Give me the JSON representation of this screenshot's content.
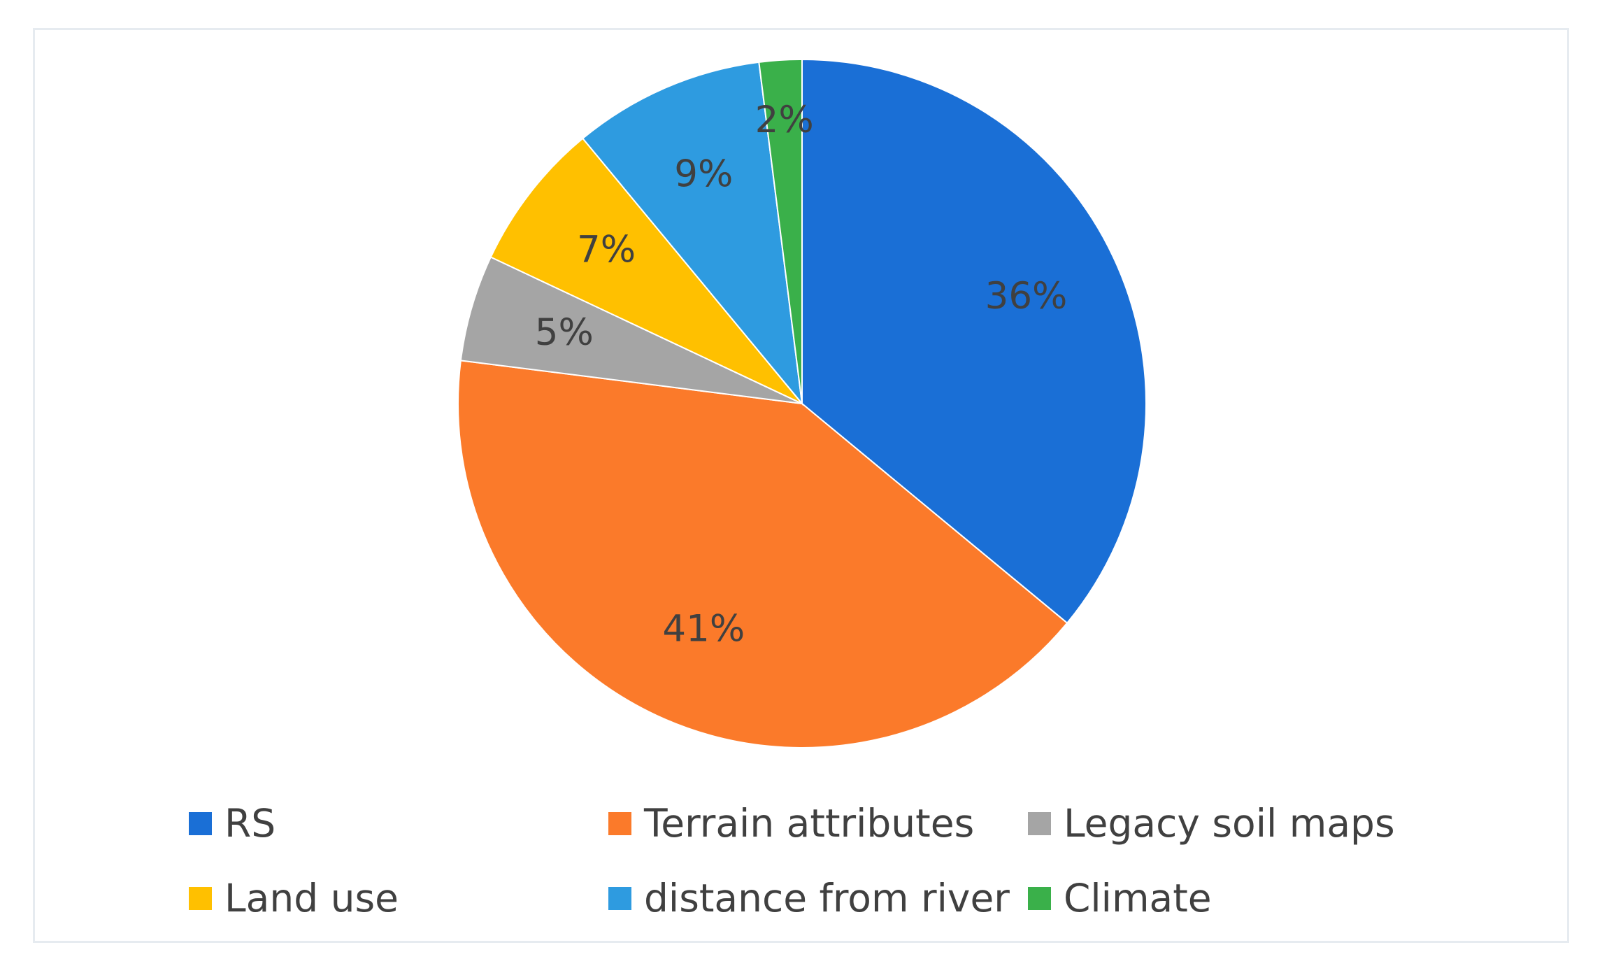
{
  "chart_data": {
    "type": "pie",
    "title": "",
    "slices": [
      {
        "label": "RS",
        "value": 36,
        "data_label": "36%",
        "color": "#1a6fd6"
      },
      {
        "label": "Terrain attributes",
        "value": 41,
        "data_label": "41%",
        "color": "#fb7a2a"
      },
      {
        "label": "Legacy soil maps",
        "value": 5,
        "data_label": "5%",
        "color": "#a5a5a5"
      },
      {
        "label": "Land use",
        "value": 7,
        "data_label": "7%",
        "color": "#ffc000"
      },
      {
        "label": "distance from river",
        "value": 9,
        "data_label": "9%",
        "color": "#2e9be0"
      },
      {
        "label": "Climate",
        "value": 2,
        "data_label": "2%",
        "color": "#3ab04a"
      }
    ],
    "start_angle_deg": 0,
    "direction": "clockwise",
    "legend_position": "bottom"
  },
  "legend": [
    {
      "label": "RS",
      "color": "#1a6fd6"
    },
    {
      "label": "Terrain attributes",
      "color": "#fb7a2a"
    },
    {
      "label": "Legacy soil maps",
      "color": "#a5a5a5"
    },
    {
      "label": "Land use",
      "color": "#ffc000"
    },
    {
      "label": "distance from river",
      "color": "#2e9be0"
    },
    {
      "label": "Climate",
      "color": "#3ab04a"
    }
  ]
}
